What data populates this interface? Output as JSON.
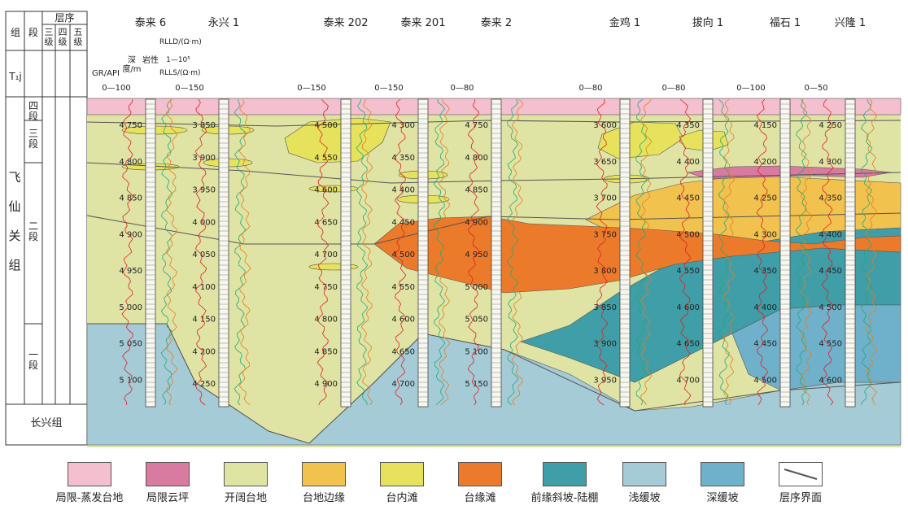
{
  "table_header": {
    "group": "组",
    "section": "段",
    "sequence": "层序",
    "third_order": "三级",
    "fourth_order": "四级",
    "fifth_order": "五级",
    "tj": "T₁j"
  },
  "strat_units": {
    "formation": "飞仙关组",
    "member4": "四段",
    "member3": "三段",
    "member2": "二段",
    "member1": "一段",
    "underlying": "长兴组"
  },
  "log_labels": {
    "gr": "GR/API",
    "depth": "深度/m",
    "lithology": "岩性",
    "rlld": "RLLD/(Ω·m)",
    "rlls": "RLLS/(Ω·m)",
    "res_range": "1—10⁵"
  },
  "wells": [
    {
      "name": "泰来 6",
      "gr_range": "0—100",
      "depths": [
        "4 750",
        "4 800",
        "4 850",
        "4 900",
        "4 950",
        "5 000",
        "5 050",
        "5 100"
      ]
    },
    {
      "name": "永兴 1",
      "gr_range": "0—150",
      "depths": [
        "3 850",
        "3 900",
        "3 950",
        "4 000",
        "4 050",
        "4 100",
        "4 150",
        "4 200",
        "4 250"
      ]
    },
    {
      "name": "泰来 202",
      "gr_range": "0—150",
      "depths": [
        "4 500",
        "4 550",
        "4 600",
        "4 650",
        "4 700",
        "4 750",
        "4 800",
        "4 850",
        "4 900"
      ]
    },
    {
      "name": "泰来 201",
      "gr_range": "0—150",
      "depths": [
        "4 300",
        "4 350",
        "4 400",
        "4 450",
        "4 500",
        "4 550",
        "4 600",
        "4 650",
        "4 700"
      ]
    },
    {
      "name": "泰来 2",
      "gr_range": "0—80",
      "depths": [
        "4 750",
        "4 800",
        "4 850",
        "4 900",
        "4 950",
        "5 000",
        "5 050",
        "5 100",
        "5 150"
      ]
    },
    {
      "name": "金鸡 1",
      "gr_range": "0—80",
      "depths": [
        "3 600",
        "3 650",
        "3 700",
        "3 750",
        "3 800",
        "3 850",
        "3 900",
        "3 950"
      ]
    },
    {
      "name": "拔向 1",
      "gr_range": "0—80",
      "depths": [
        "4 350",
        "4 400",
        "4 450",
        "4 500",
        "4 550",
        "4 600",
        "4 650",
        "4 700"
      ]
    },
    {
      "name": "福石 1",
      "gr_range": "0—100",
      "depths": [
        "4 150",
        "4 200",
        "4 250",
        "4 300",
        "4 350",
        "4 400",
        "4 450",
        "4 500"
      ]
    },
    {
      "name": "兴隆 1",
      "gr_range": "0—50",
      "depths": [
        "4 250",
        "4 300",
        "4 350",
        "4 400",
        "4 450",
        "4 500",
        "4 550",
        "4 600"
      ]
    }
  ],
  "legend": [
    {
      "label": "局限-蒸发台地",
      "color": "#f4bfcf"
    },
    {
      "label": "局限云坪",
      "color": "#d97aa0"
    },
    {
      "label": "开阔台地",
      "color": "#dfe3a3"
    },
    {
      "label": "台地边缘",
      "color": "#f2c24e"
    },
    {
      "label": "台内滩",
      "color": "#e6e25c"
    },
    {
      "label": "台缘滩",
      "color": "#ec7a2b"
    },
    {
      "label": "前缘斜坡-陆棚",
      "color": "#3f9ea7"
    },
    {
      "label": "浅缓坡",
      "color": "#a5cbd6"
    },
    {
      "label": "深缓坡",
      "color": "#6fb1cb"
    },
    {
      "label": "层序界面",
      "color": "#555555"
    }
  ]
}
